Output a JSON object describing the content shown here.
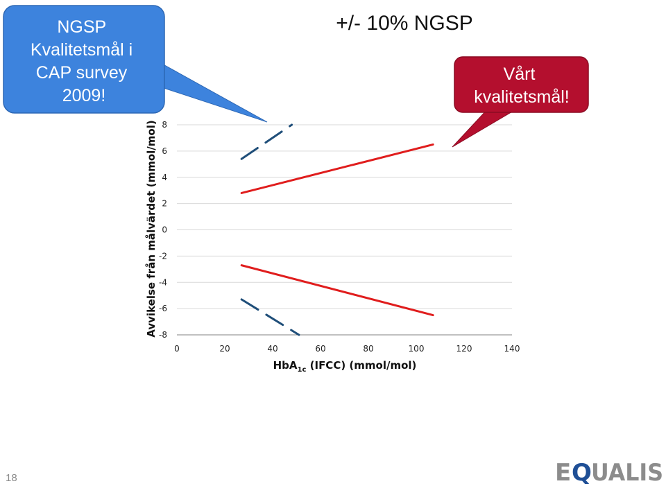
{
  "colors": {
    "inner_limit": "#e01d1d",
    "outer_limit": "#1f4e79",
    "callout_blue": "#3d83dd",
    "callout_red": "#b40f2e",
    "grid": "#d9d9d9",
    "axis": "#808080",
    "logo_gray": "#8c8c8c",
    "logo_blue": "#1f4f96"
  },
  "callouts": {
    "ngsp_cap": [
      "NGSP",
      "Kvalitetsmål i",
      "CAP survey",
      "2009!"
    ],
    "our_goal": [
      "Vårt",
      "kvalitetsmål!"
    ]
  },
  "slide": {
    "page_number": "18"
  },
  "logo": {
    "text_left": "E",
    "text_q": "Q",
    "text_right": "UALIS"
  },
  "chart_data": {
    "type": "line",
    "title": "+/- 10% NGSP",
    "xlabel_main": "HbA",
    "xlabel_sub": "1c",
    "xlabel_rest": " (IFCC) (mmol/mol)",
    "ylabel": "Avvikelse från målvärdet (mmol/mol)",
    "xlim": [
      0,
      140
    ],
    "ylim": [
      -8,
      8
    ],
    "x_ticks": [
      0,
      20,
      40,
      60,
      80,
      100,
      120,
      140
    ],
    "y_ticks": [
      8,
      6,
      4,
      2,
      0,
      -2,
      -4,
      -6,
      -8
    ],
    "grid": "horizontal",
    "series": [
      {
        "style": "solid",
        "color": "#e01d1d",
        "points": [
          [
            27,
            2.8
          ],
          [
            107,
            6.5
          ]
        ]
      },
      {
        "style": "solid",
        "color": "#e01d1d",
        "points": [
          [
            27,
            -2.7
          ],
          [
            107,
            -6.5
          ]
        ]
      },
      {
        "style": "dashed",
        "color": "#1f4e79",
        "points": [
          [
            27,
            5.4
          ],
          [
            48,
            8
          ]
        ]
      },
      {
        "style": "dashed",
        "color": "#1f4e79",
        "points": [
          [
            27,
            -5.3
          ],
          [
            51,
            -8
          ]
        ]
      }
    ]
  }
}
